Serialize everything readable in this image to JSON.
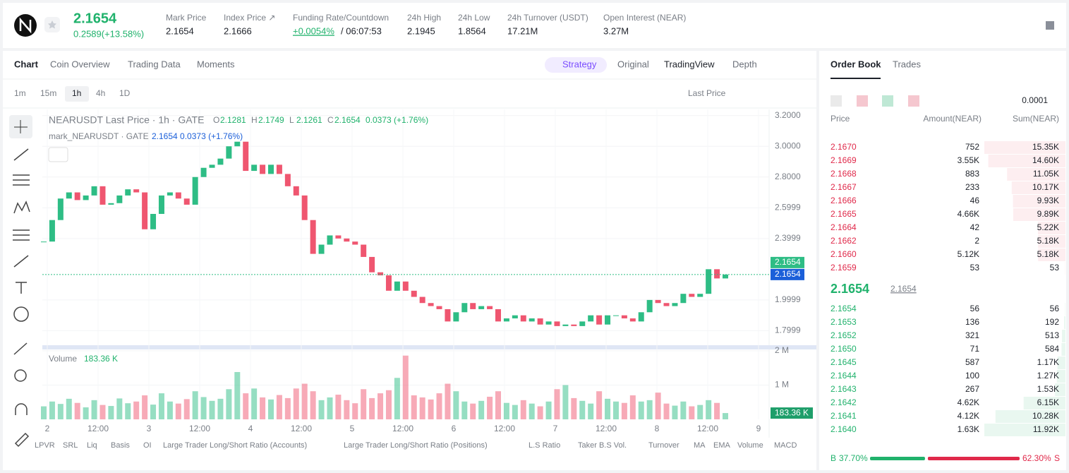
{
  "header": {
    "price": "2.1654",
    "change": "0.2589(+13.58%)",
    "stats": [
      {
        "label": "Mark Price",
        "value": "2.1654"
      },
      {
        "label": "Index Price ↗",
        "value": "2.1666"
      },
      {
        "label": "Funding Rate/Countdown",
        "value": "+0.0054%",
        "countdown": "/ 06:07:53"
      },
      {
        "label": "24h High",
        "value": "2.1945"
      },
      {
        "label": "24h Low",
        "value": "1.8564"
      },
      {
        "label": "24h Turnover (USDT)",
        "value": "17.21M"
      },
      {
        "label": "Open Interest (NEAR)",
        "value": "3.27M"
      }
    ]
  },
  "chart_tabs": [
    "Chart",
    "Coin Overview",
    "Trading Data",
    "Moments"
  ],
  "view_tabs": [
    "Strategy",
    "Original",
    "TradingView",
    "Depth"
  ],
  "intervals": [
    "1m",
    "15m",
    "1h",
    "4h",
    "1D"
  ],
  "price_type": "Last Price",
  "chart_data": {
    "type": "candlestick",
    "title": "NEARUSDT Last Price · 1h · GATE",
    "ohlc_labels": [
      "O",
      "H",
      "L",
      "C"
    ],
    "ohlc_values": [
      "2.1281",
      "2.1749",
      "2.1261",
      "2.1654"
    ],
    "change": "0.0373 (+1.76%)",
    "mark_title": "mark_NEARUSDT · GATE",
    "mark_values": "2.1654  0.0373 (+1.76%)",
    "up_color": "#2ebd85",
    "down_color": "#ef5670",
    "closes": [
      2.38,
      2.52,
      2.66,
      2.7,
      2.65,
      2.68,
      2.74,
      2.62,
      2.63,
      2.68,
      2.72,
      2.7,
      2.46,
      2.56,
      2.68,
      2.7,
      2.66,
      2.62,
      2.8,
      2.86,
      2.88,
      2.92,
      3.0,
      3.03,
      2.84,
      2.88,
      2.82,
      2.88,
      2.82,
      2.74,
      2.68,
      2.52,
      2.3,
      2.36,
      2.42,
      2.4,
      2.38,
      2.36,
      2.28,
      2.18,
      2.16,
      2.06,
      2.12,
      2.06,
      2.02,
      1.98,
      1.96,
      1.94,
      1.86,
      1.92,
      1.98,
      1.94,
      1.96,
      1.94,
      1.86,
      1.88,
      1.9,
      1.86,
      1.88,
      1.84,
      1.86,
      1.83,
      1.84,
      1.83,
      1.86,
      1.9,
      1.84,
      1.9,
      1.9,
      1.88,
      1.86,
      1.92,
      2.0,
      1.98,
      1.96,
      1.98,
      2.04,
      2.02,
      2.04,
      2.2,
      2.14,
      2.1654
    ],
    "ylim": [
      1.71,
      3.24
    ],
    "yticks": [
      {
        "value": 3.2,
        "label": "3.2000"
      },
      {
        "value": 3,
        "label": "3.0000"
      },
      {
        "value": 2.8,
        "label": "2.8000"
      },
      2.5999,
      2.3999,
      1.9999,
      1.7999
    ],
    "current_price": 2.1654,
    "x_labels": [
      "2",
      "12:00",
      "3",
      "12:00",
      "4",
      "12:00",
      "5",
      "12:00",
      "6",
      "12:00",
      "7",
      "12:00",
      "8",
      "12:00",
      "9"
    ],
    "volume": {
      "title": "Volume",
      "last": {
        "value": 183360,
        "label": "183.36 K"
      },
      "values": [
        380000,
        520000,
        450000,
        600000,
        480000,
        350000,
        560000,
        420000,
        390000,
        610000,
        470000,
        520000,
        700000,
        430000,
        760000,
        520000,
        460000,
        590000,
        820000,
        650000,
        540000,
        600000,
        880000,
        1380000,
        760000,
        900000,
        640000,
        580000,
        710000,
        620000,
        900000,
        1040000,
        820000,
        560000,
        640000,
        720000,
        560000,
        470000,
        880000,
        620000,
        760000,
        850000,
        1210000,
        1860000,
        700000,
        640000,
        580000,
        760000,
        1040000,
        820000,
        520000,
        460000,
        540000,
        660000,
        820000,
        480000,
        420000,
        560000,
        460000,
        380000,
        520000,
        880000,
        1000000,
        620000,
        540000,
        460000,
        820000,
        600000,
        520000,
        480000,
        700000,
        520000,
        560000,
        780000,
        460000,
        400000,
        520000,
        380000,
        420000,
        560000,
        480000,
        183360
      ],
      "ylim": [
        0,
        2060000
      ],
      "yticks": [
        {
          "value": 2000000,
          "label": "2 M"
        },
        {
          "value": 1000000,
          "label": "1 M"
        }
      ]
    }
  },
  "indicators": [
    "LPVR",
    "SRL",
    "Liq",
    "Basis",
    "OI",
    "Large Trader Long/Short Ratio (Accounts)",
    "Large Trader Long/Short Ratio (Positions)",
    "L.S Ratio",
    "Taker B.S Vol.",
    "Turnover",
    "MA",
    "EMA",
    "Volume",
    "MACD"
  ],
  "order_book": {
    "tabs": [
      "Order Book",
      "Trades"
    ],
    "precision": "0.0001",
    "columns": [
      "Price",
      "Amount(NEAR)",
      "Sum(NEAR)"
    ],
    "asks": {
      "prices": [
        "2.1670",
        "2.1669",
        "2.1668",
        "2.1667",
        "2.1666",
        "2.1665",
        "2.1664",
        "2.1662",
        "2.1660",
        "2.1659"
      ],
      "amounts": [
        "752",
        "3.55K",
        "883",
        "233",
        "46",
        "4.66K",
        "42",
        "2",
        "5.12K",
        "53"
      ],
      "sums": [
        15350,
        14600,
        11050,
        10170,
        9930,
        9890,
        5220,
        5180,
        5180,
        53
      ],
      "sum_labels": [
        "15.35K",
        "14.60K",
        "11.05K",
        "10.17K",
        "9.93K",
        "9.89K",
        "5.22K",
        "5.18K",
        "5.18K",
        "53"
      ]
    },
    "last_price": "2.1654",
    "mark_price": "2.1654",
    "bids": {
      "prices": [
        "2.1654",
        "2.1653",
        "2.1652",
        "2.1650",
        "2.1645",
        "2.1644",
        "2.1643",
        "2.1642",
        "2.1641",
        "2.1640"
      ],
      "amounts": [
        "56",
        "136",
        "321",
        "71",
        "587",
        "100",
        "267",
        "4.62K",
        "4.12K",
        "1.63K"
      ],
      "sums": [
        56,
        192,
        513,
        584,
        1170,
        1270,
        1530,
        6150,
        10280,
        11920
      ],
      "sum_labels": [
        "56",
        "192",
        "513",
        "584",
        "1.17K",
        "1.27K",
        "1.53K",
        "6.15K",
        "10.28K",
        "11.92K"
      ]
    },
    "ratio": {
      "buy_label": "B",
      "buy": {
        "value": 37.7,
        "label": "37.70%"
      },
      "sell": {
        "value": 62.3,
        "label": "62.30%"
      },
      "sell_label": "S"
    }
  }
}
